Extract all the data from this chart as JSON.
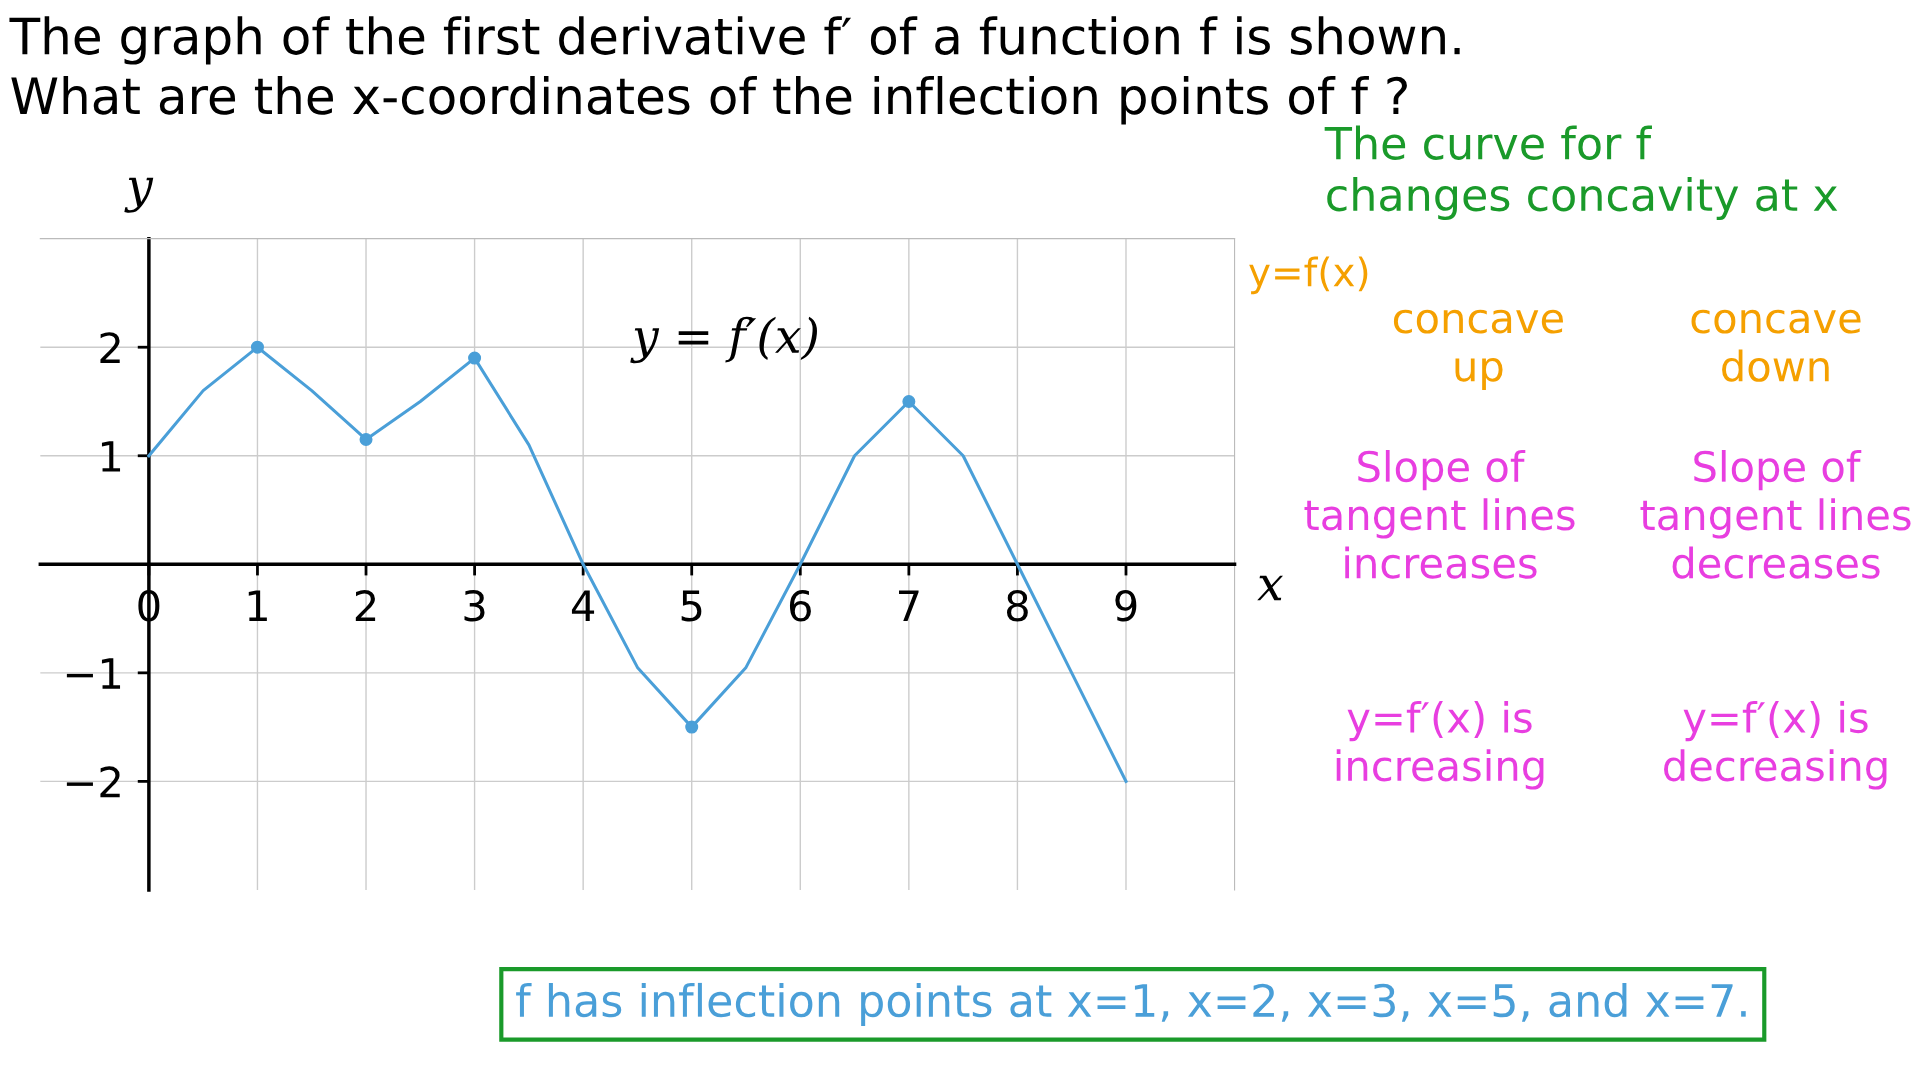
{
  "chart_data": {
    "type": "line",
    "title": "The graph of the first derivative f′ of a function f is shown.\nWhat are the x-coordinates of the inflection points of f ?",
    "xlabel": "x",
    "ylabel": "y",
    "xlim": [
      -1,
      10
    ],
    "ylim": [
      -3,
      3
    ],
    "xticks": [
      0,
      1,
      2,
      3,
      4,
      5,
      6,
      7,
      8,
      9
    ],
    "yticks": [
      {
        "value": -2,
        "label": "−2"
      },
      {
        "value": -1,
        "label": "−1"
      },
      1,
      2
    ],
    "grid": true,
    "legend": false,
    "marker": "none",
    "line_style": "solid",
    "series": [
      {
        "name": "y = f′(x)",
        "color": "#4a9fd8",
        "x": [
          0,
          0.5,
          1,
          1.5,
          2,
          2.5,
          3,
          3.5,
          4,
          4.5,
          5,
          5.5,
          6,
          6.5,
          7,
          7.5,
          8,
          8.5,
          9
        ],
        "values": [
          1,
          1.6,
          2.0,
          1.6,
          1.15,
          1.5,
          1.9,
          1.1,
          0,
          -0.95,
          -1.5,
          -0.95,
          0,
          1.0,
          1.5,
          1.0,
          0,
          -1.0,
          -2
        ]
      },
      {
        "type": "scatter",
        "color": "#4a9fd8",
        "x": [
          1,
          2,
          3,
          5,
          7
        ],
        "values": [
          2.0,
          1.15,
          1.9,
          -1.5,
          1.5
        ],
        "marker": "circle"
      }
    ],
    "annotations": [
      "The curve for f\nchanges concavity at x",
      "y=f(x)",
      "concave\nup",
      "concave\ndown",
      "Slope of\ntangent lines\nincreases",
      "Slope of\ntangent lines\ndecreases",
      "y=f′(x) is\nincreasing",
      "y=f′(x) is\ndecreasing",
      "f has inflection points at x=1, x=2, x=3, x=5, and x=7."
    ]
  }
}
